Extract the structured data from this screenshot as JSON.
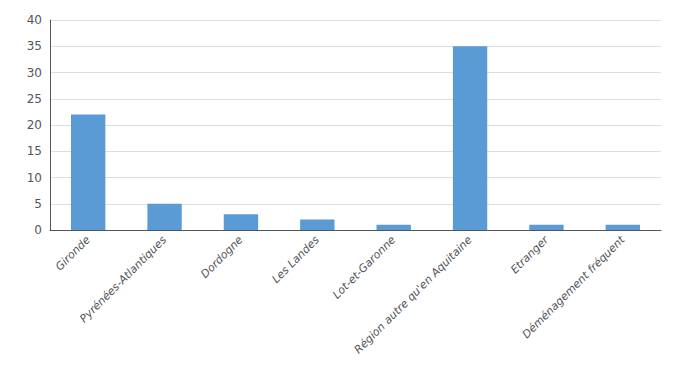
{
  "chart_data": {
    "type": "bar",
    "categories": [
      "Gironde",
      "Pyrénées-Atlantiques",
      "Dordogne",
      "Les Landes",
      "Lot-et-Garonne",
      "Région autre qu'en Aquitaine",
      "Etranger",
      "Déménagement fréquent"
    ],
    "values": [
      22,
      5,
      3,
      2,
      1,
      35,
      1,
      1
    ],
    "color": "#5b9bd5",
    "ylim": [
      0,
      40
    ],
    "yticks": [
      0,
      5,
      10,
      15,
      20,
      25,
      30,
      35,
      40
    ],
    "grid": true
  }
}
